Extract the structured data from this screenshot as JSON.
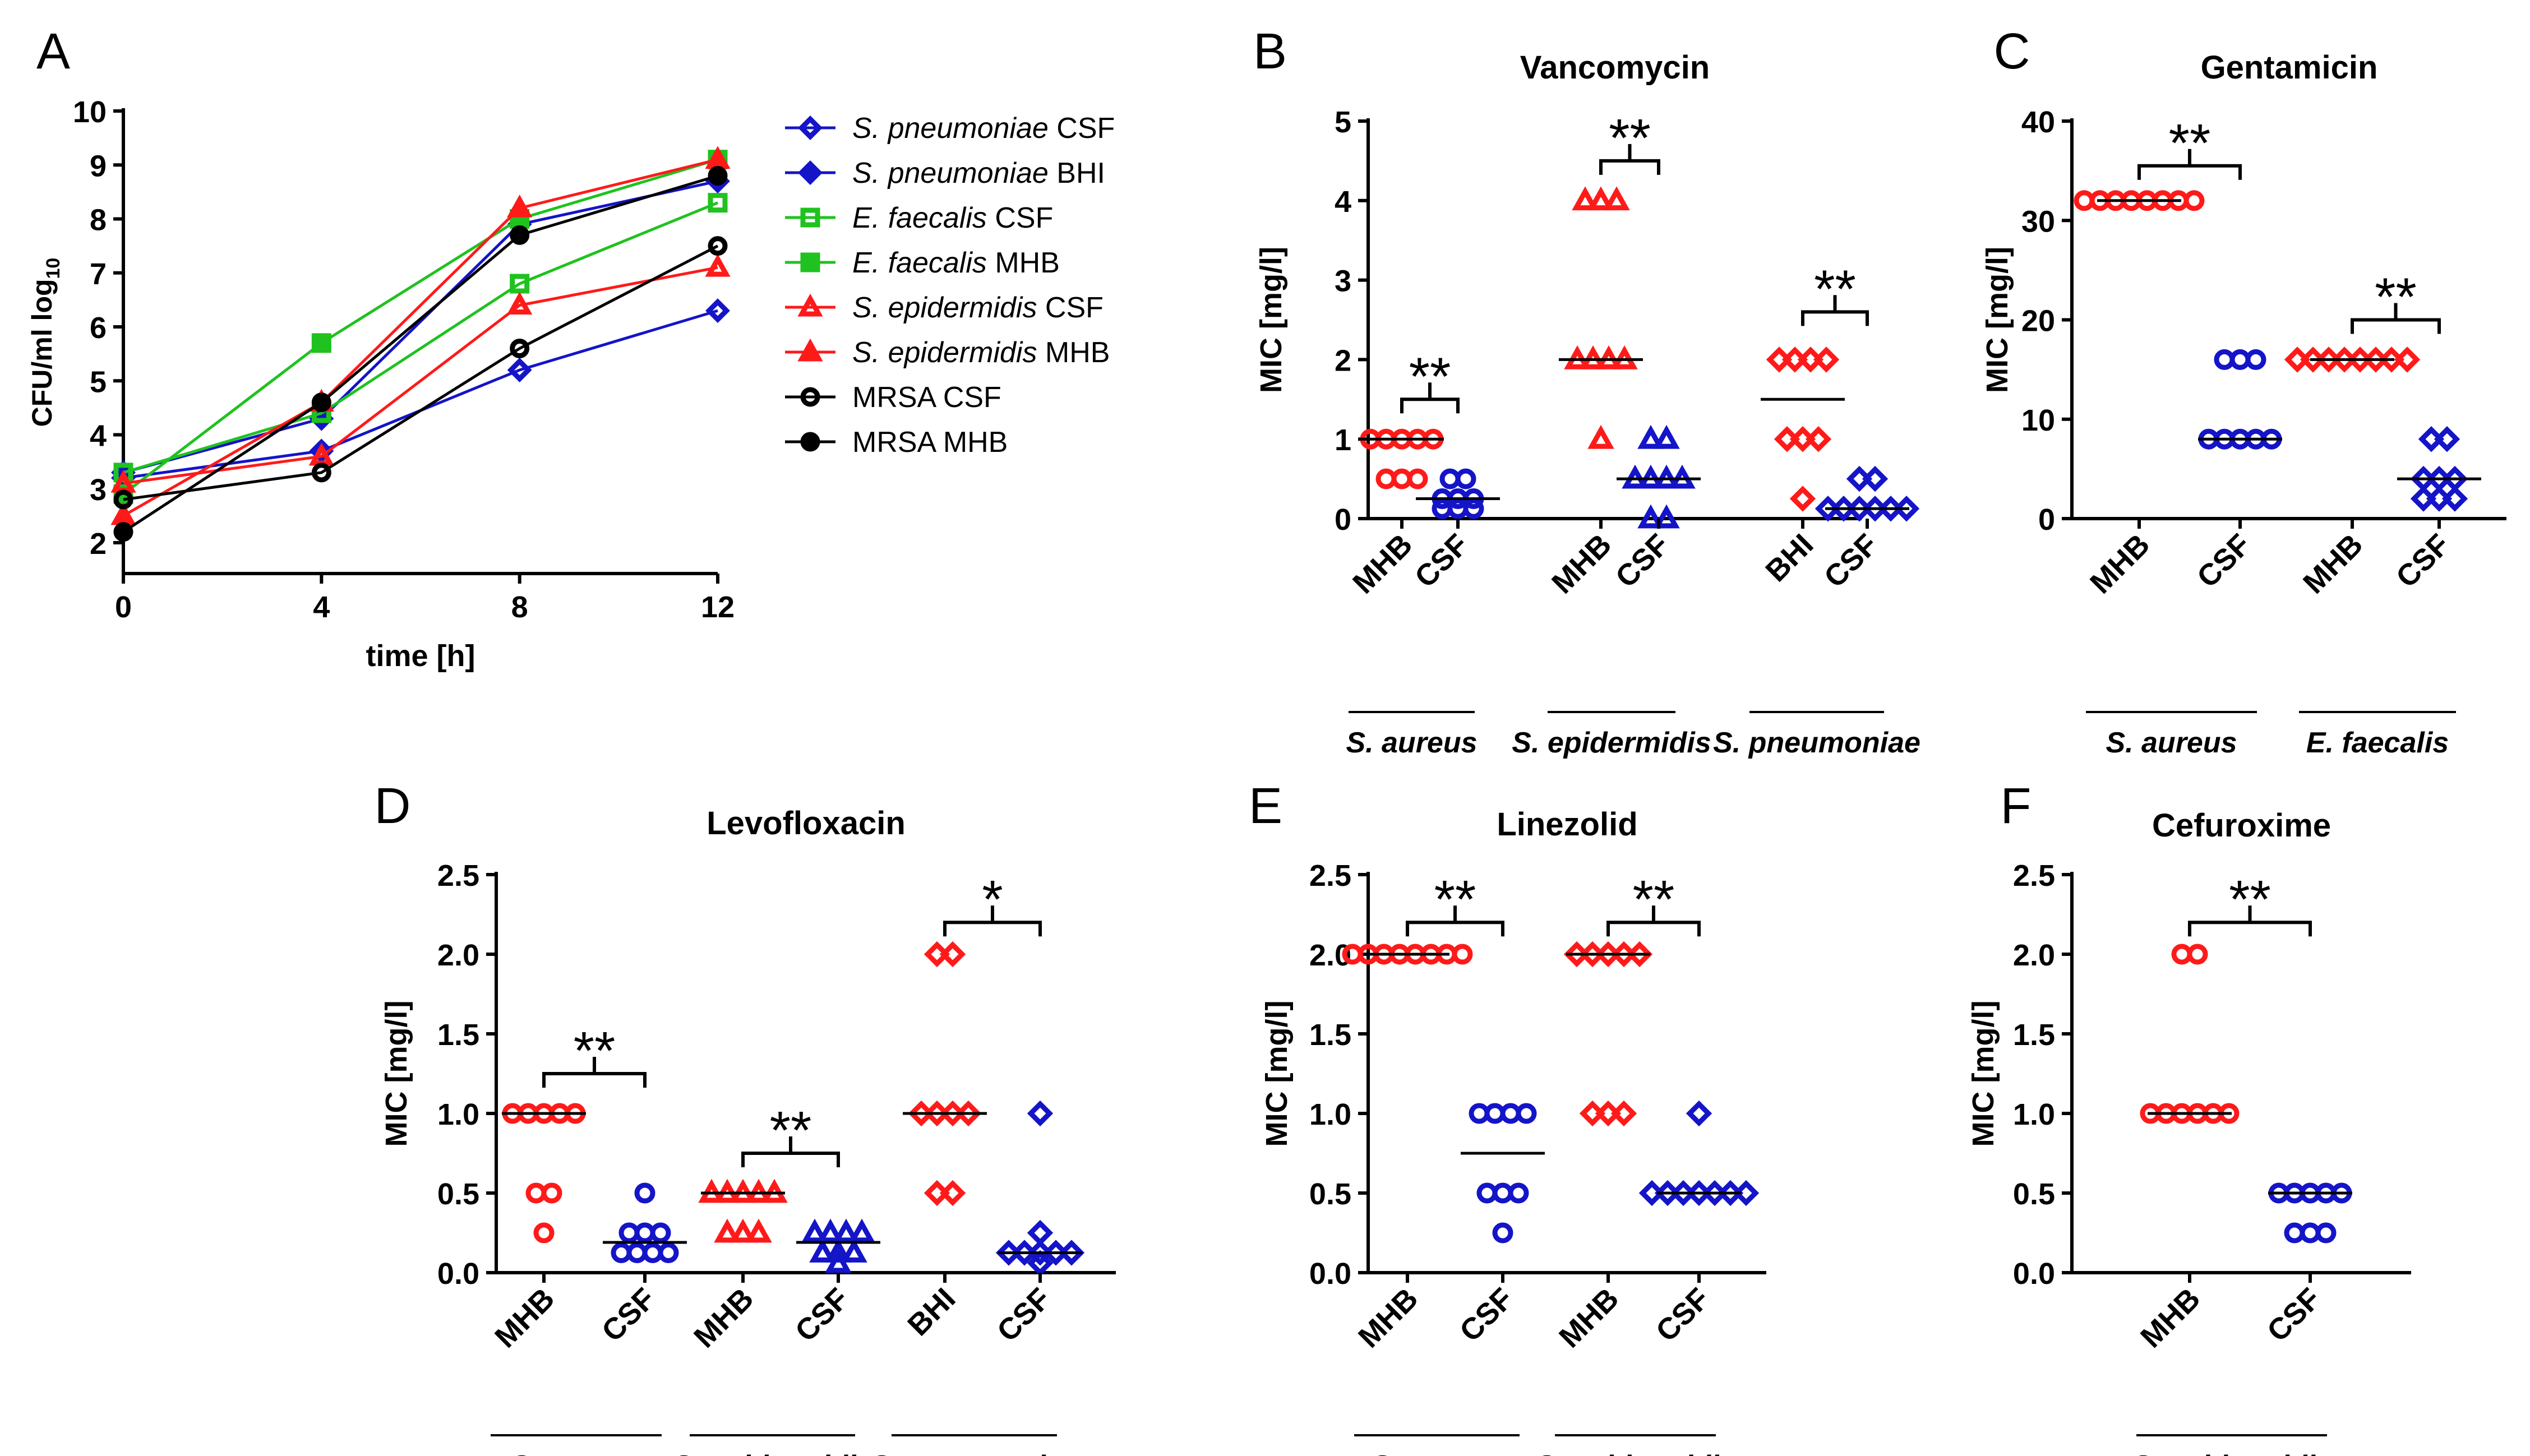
{
  "colors": {
    "red": "#ff1a1a",
    "blue": "#1414c8",
    "green": "#1fc21f",
    "black": "#000000"
  },
  "chart_data": [
    {
      "id": "A",
      "panel_label": "A",
      "type": "line",
      "title": "",
      "xlabel": "time [h]",
      "ylabel": "CFU/ml log",
      "ylabel_sub": "10",
      "x": [
        0,
        4,
        8,
        12
      ],
      "xlim": [
        0,
        12
      ],
      "ylim": [
        2,
        10
      ],
      "xticks": [
        "0",
        "4",
        "8",
        "12"
      ],
      "yticks": [
        "2",
        "3",
        "4",
        "5",
        "6",
        "7",
        "8",
        "9",
        "10"
      ],
      "series": [
        {
          "name": "S. pneumoniae CSF",
          "species": "S. pneumoniae",
          "medium": "CSF",
          "color": "blue",
          "marker": "diamond-open",
          "values": [
            3.2,
            3.7,
            5.2,
            6.3
          ]
        },
        {
          "name": "S. pneumoniae BHI",
          "species": "S. pneumoniae",
          "medium": "BHI",
          "color": "blue",
          "marker": "diamond",
          "values": [
            3.3,
            4.3,
            7.9,
            8.7
          ]
        },
        {
          "name": "E. faecalis CSF",
          "species": "E. faecalis",
          "medium": "CSF",
          "color": "green",
          "marker": "square-open",
          "values": [
            3.3,
            4.4,
            6.8,
            8.3
          ]
        },
        {
          "name": "E. faecalis MHB",
          "species": "E. faecalis",
          "medium": "MHB",
          "color": "green",
          "marker": "square",
          "values": [
            2.9,
            5.7,
            8.0,
            9.1
          ]
        },
        {
          "name": "S. epidermidis CSF",
          "species": "S. epidermidis",
          "medium": "CSF",
          "color": "red",
          "marker": "triangle-open",
          "values": [
            3.1,
            3.6,
            6.4,
            7.1
          ]
        },
        {
          "name": "S. epidermidis MHB",
          "species": "S. epidermidis",
          "medium": "MHB",
          "color": "red",
          "marker": "triangle",
          "values": [
            2.5,
            4.6,
            8.2,
            9.1
          ]
        },
        {
          "name": "MRSA CSF",
          "species": "",
          "medium": "MRSA CSF",
          "color": "black",
          "marker": "circle-open",
          "values": [
            2.8,
            3.3,
            5.6,
            7.5
          ]
        },
        {
          "name": "MRSA MHB",
          "species": "",
          "medium": "MRSA MHB",
          "color": "black",
          "marker": "circle",
          "values": [
            2.2,
            4.6,
            7.7,
            8.8
          ]
        }
      ]
    },
    {
      "id": "B",
      "panel_label": "B",
      "type": "scatter",
      "title": "Vancomycin",
      "ylabel": "MIC [mg/l]",
      "ylim": [
        0,
        5
      ],
      "yticks": [
        "0",
        "1",
        "2",
        "3",
        "4",
        "5"
      ],
      "ytick_values": [
        0,
        1,
        2,
        3,
        4,
        5
      ],
      "groups": [
        {
          "label": "MHB",
          "color": "red",
          "marker": "circle",
          "values": [
            1,
            1,
            1,
            1,
            1,
            0.5,
            0.5,
            0.5
          ],
          "median": 1
        },
        {
          "label": "CSF",
          "color": "blue",
          "marker": "circle",
          "values": [
            0.5,
            0.5,
            0.25,
            0.25,
            0.25,
            0.125,
            0.125,
            0.125
          ],
          "median": 0.25
        },
        {
          "label": "MHB",
          "color": "red",
          "marker": "triangle",
          "values": [
            4,
            4,
            4,
            2,
            2,
            2,
            2,
            1
          ],
          "median": 2
        },
        {
          "label": "CSF",
          "color": "blue",
          "marker": "triangle",
          "values": [
            1,
            1,
            0.5,
            0.5,
            0.5,
            0.5,
            0,
            0
          ],
          "median": 0.5
        },
        {
          "label": "BHI",
          "color": "red",
          "marker": "diamond",
          "values": [
            2,
            2,
            2,
            2,
            1,
            1,
            1,
            0.25
          ],
          "median": 1.5
        },
        {
          "label": "CSF",
          "color": "blue",
          "marker": "diamond",
          "values": [
            0.5,
            0.5,
            0.125,
            0.125,
            0.125,
            0.125,
            0.125,
            0.125
          ],
          "median": 0.125
        }
      ],
      "brackets": [
        {
          "from": 0,
          "to": 1,
          "y": 1.5,
          "text": "**"
        },
        {
          "from": 2,
          "to": 3,
          "y": 4.5,
          "text": "**"
        },
        {
          "from": 4,
          "to": 5,
          "y": 2.6,
          "text": "**"
        }
      ],
      "species": [
        {
          "from": 0,
          "to": 1,
          "name": "S. aureus"
        },
        {
          "from": 2,
          "to": 3,
          "name": "S. epidermidis"
        },
        {
          "from": 4,
          "to": 5,
          "name": "S. pneumoniae"
        }
      ]
    },
    {
      "id": "C",
      "panel_label": "C",
      "type": "scatter",
      "title": "Gentamicin",
      "ylabel": "MIC [mg/l]",
      "ylim": [
        0,
        40
      ],
      "yticks": [
        "0",
        "10",
        "20",
        "30",
        "40"
      ],
      "ytick_values": [
        0,
        10,
        20,
        30,
        40
      ],
      "groups": [
        {
          "label": "MHB",
          "color": "red",
          "marker": "circle",
          "values": [
            32,
            32,
            32,
            32,
            32,
            32,
            32,
            32
          ],
          "median": 32
        },
        {
          "label": "CSF",
          "color": "blue",
          "marker": "circle",
          "values": [
            16,
            16,
            16,
            8,
            8,
            8,
            8,
            8
          ],
          "median": 8
        },
        {
          "label": "MHB",
          "color": "red",
          "marker": "diamond",
          "values": [
            16,
            16,
            16,
            16,
            16,
            16,
            16,
            16
          ],
          "median": 16
        },
        {
          "label": "CSF",
          "color": "blue",
          "marker": "diamond",
          "values": [
            8,
            8,
            4,
            4,
            4,
            2,
            2,
            2
          ],
          "median": 4
        }
      ],
      "brackets": [
        {
          "from": 0,
          "to": 1,
          "y": 35.5,
          "text": "**"
        },
        {
          "from": 2,
          "to": 3,
          "y": 20,
          "text": "**"
        }
      ],
      "species": [
        {
          "from": 0,
          "to": 1,
          "name": "S. aureus"
        },
        {
          "from": 2,
          "to": 3,
          "name": "E. faecalis"
        }
      ]
    },
    {
      "id": "D",
      "panel_label": "D",
      "type": "scatter",
      "title": "Levofloxacin",
      "ylabel": "MIC [mg/l]",
      "ylim": [
        0,
        2.5
      ],
      "yticks": [
        "0.0",
        "0.5",
        "1.0",
        "1.5",
        "2.0",
        "2.5"
      ],
      "ytick_values": [
        0,
        0.5,
        1,
        1.5,
        2,
        2.5
      ],
      "groups": [
        {
          "label": "MHB",
          "color": "red",
          "marker": "circle",
          "values": [
            1,
            1,
            1,
            1,
            1,
            0.5,
            0.5,
            0.25
          ],
          "median": 1
        },
        {
          "label": "CSF",
          "color": "blue",
          "marker": "circle",
          "values": [
            0.5,
            0.25,
            0.25,
            0.25,
            0.125,
            0.125,
            0.125,
            0.125
          ],
          "median": 0.19
        },
        {
          "label": "MHB",
          "color": "red",
          "marker": "triangle",
          "values": [
            0.5,
            0.5,
            0.5,
            0.5,
            0.5,
            0.25,
            0.25,
            0.25
          ],
          "median": 0.5
        },
        {
          "label": "CSF",
          "color": "blue",
          "marker": "triangle",
          "values": [
            0.25,
            0.25,
            0.25,
            0.25,
            0.125,
            0.125,
            0.125,
            0.06
          ],
          "median": 0.19
        },
        {
          "label": "BHI",
          "color": "red",
          "marker": "diamond",
          "values": [
            2,
            2,
            1,
            1,
            1,
            1,
            0.5,
            0.5
          ],
          "median": 1
        },
        {
          "label": "CSF",
          "color": "blue",
          "marker": "diamond",
          "values": [
            1,
            0.25,
            0.125,
            0.125,
            0.125,
            0.125,
            0.125,
            0.06
          ],
          "median": 0.125
        }
      ],
      "brackets": [
        {
          "from": 0,
          "to": 1,
          "y": 1.25,
          "text": "**"
        },
        {
          "from": 2,
          "to": 3,
          "y": 0.75,
          "text": "**"
        },
        {
          "from": 4,
          "to": 5,
          "y": 2.2,
          "text": "*"
        }
      ],
      "species": [
        {
          "from": 0,
          "to": 1,
          "name": "S. aureus"
        },
        {
          "from": 2,
          "to": 3,
          "name": "S. epidermidis"
        },
        {
          "from": 4,
          "to": 5,
          "name": "S. pneumoniae"
        }
      ]
    },
    {
      "id": "E",
      "panel_label": "E",
      "type": "scatter",
      "title": "Linezolid",
      "ylabel": "MIC [mg/l]",
      "ylim": [
        0,
        2.5
      ],
      "yticks": [
        "0.0",
        "0.5",
        "1.0",
        "1.5",
        "2.0",
        "2.5"
      ],
      "ytick_values": [
        0,
        0.5,
        1,
        1.5,
        2,
        2.5
      ],
      "groups": [
        {
          "label": "MHB",
          "color": "red",
          "marker": "circle",
          "values": [
            2,
            2,
            2,
            2,
            2,
            2,
            2,
            2
          ],
          "median": 2
        },
        {
          "label": "CSF",
          "color": "blue",
          "marker": "circle",
          "values": [
            1,
            1,
            1,
            1,
            0.5,
            0.5,
            0.5,
            0.25
          ],
          "median": 0.75
        },
        {
          "label": "MHB",
          "color": "red",
          "marker": "diamond",
          "values": [
            2,
            2,
            2,
            2,
            2,
            1,
            1,
            1
          ],
          "median": 2
        },
        {
          "label": "CSF",
          "color": "blue",
          "marker": "diamond",
          "values": [
            1,
            0.5,
            0.5,
            0.5,
            0.5,
            0.5,
            0.5,
            0.5
          ],
          "median": 0.5
        }
      ],
      "brackets": [
        {
          "from": 0,
          "to": 1,
          "y": 2.2,
          "text": "**"
        },
        {
          "from": 2,
          "to": 3,
          "y": 2.2,
          "text": "**"
        }
      ],
      "species": [
        {
          "from": 0,
          "to": 1,
          "name": "S. aureus"
        },
        {
          "from": 2,
          "to": 3,
          "name": "S. epidermidis"
        }
      ]
    },
    {
      "id": "F",
      "panel_label": "F",
      "type": "scatter",
      "title": "Cefuroxime",
      "ylabel": "MIC [mg/l]",
      "ylim": [
        0,
        2.5
      ],
      "yticks": [
        "0.0",
        "0.5",
        "1.0",
        "1.5",
        "2.0",
        "2.5"
      ],
      "ytick_values": [
        0,
        0.5,
        1,
        1.5,
        2,
        2.5
      ],
      "groups": [
        {
          "label": "MHB",
          "color": "red",
          "marker": "circle",
          "values": [
            2,
            2,
            1,
            1,
            1,
            1,
            1,
            1
          ],
          "median": 1
        },
        {
          "label": "CSF",
          "color": "blue",
          "marker": "circle",
          "values": [
            0.5,
            0.5,
            0.5,
            0.5,
            0.5,
            0.25,
            0.25,
            0.25
          ],
          "median": 0.5
        }
      ],
      "brackets": [
        {
          "from": 0,
          "to": 1,
          "y": 2.2,
          "text": "**"
        }
      ],
      "species": [
        {
          "from": 0,
          "to": 1,
          "name": "S. epidermidis"
        }
      ]
    }
  ]
}
